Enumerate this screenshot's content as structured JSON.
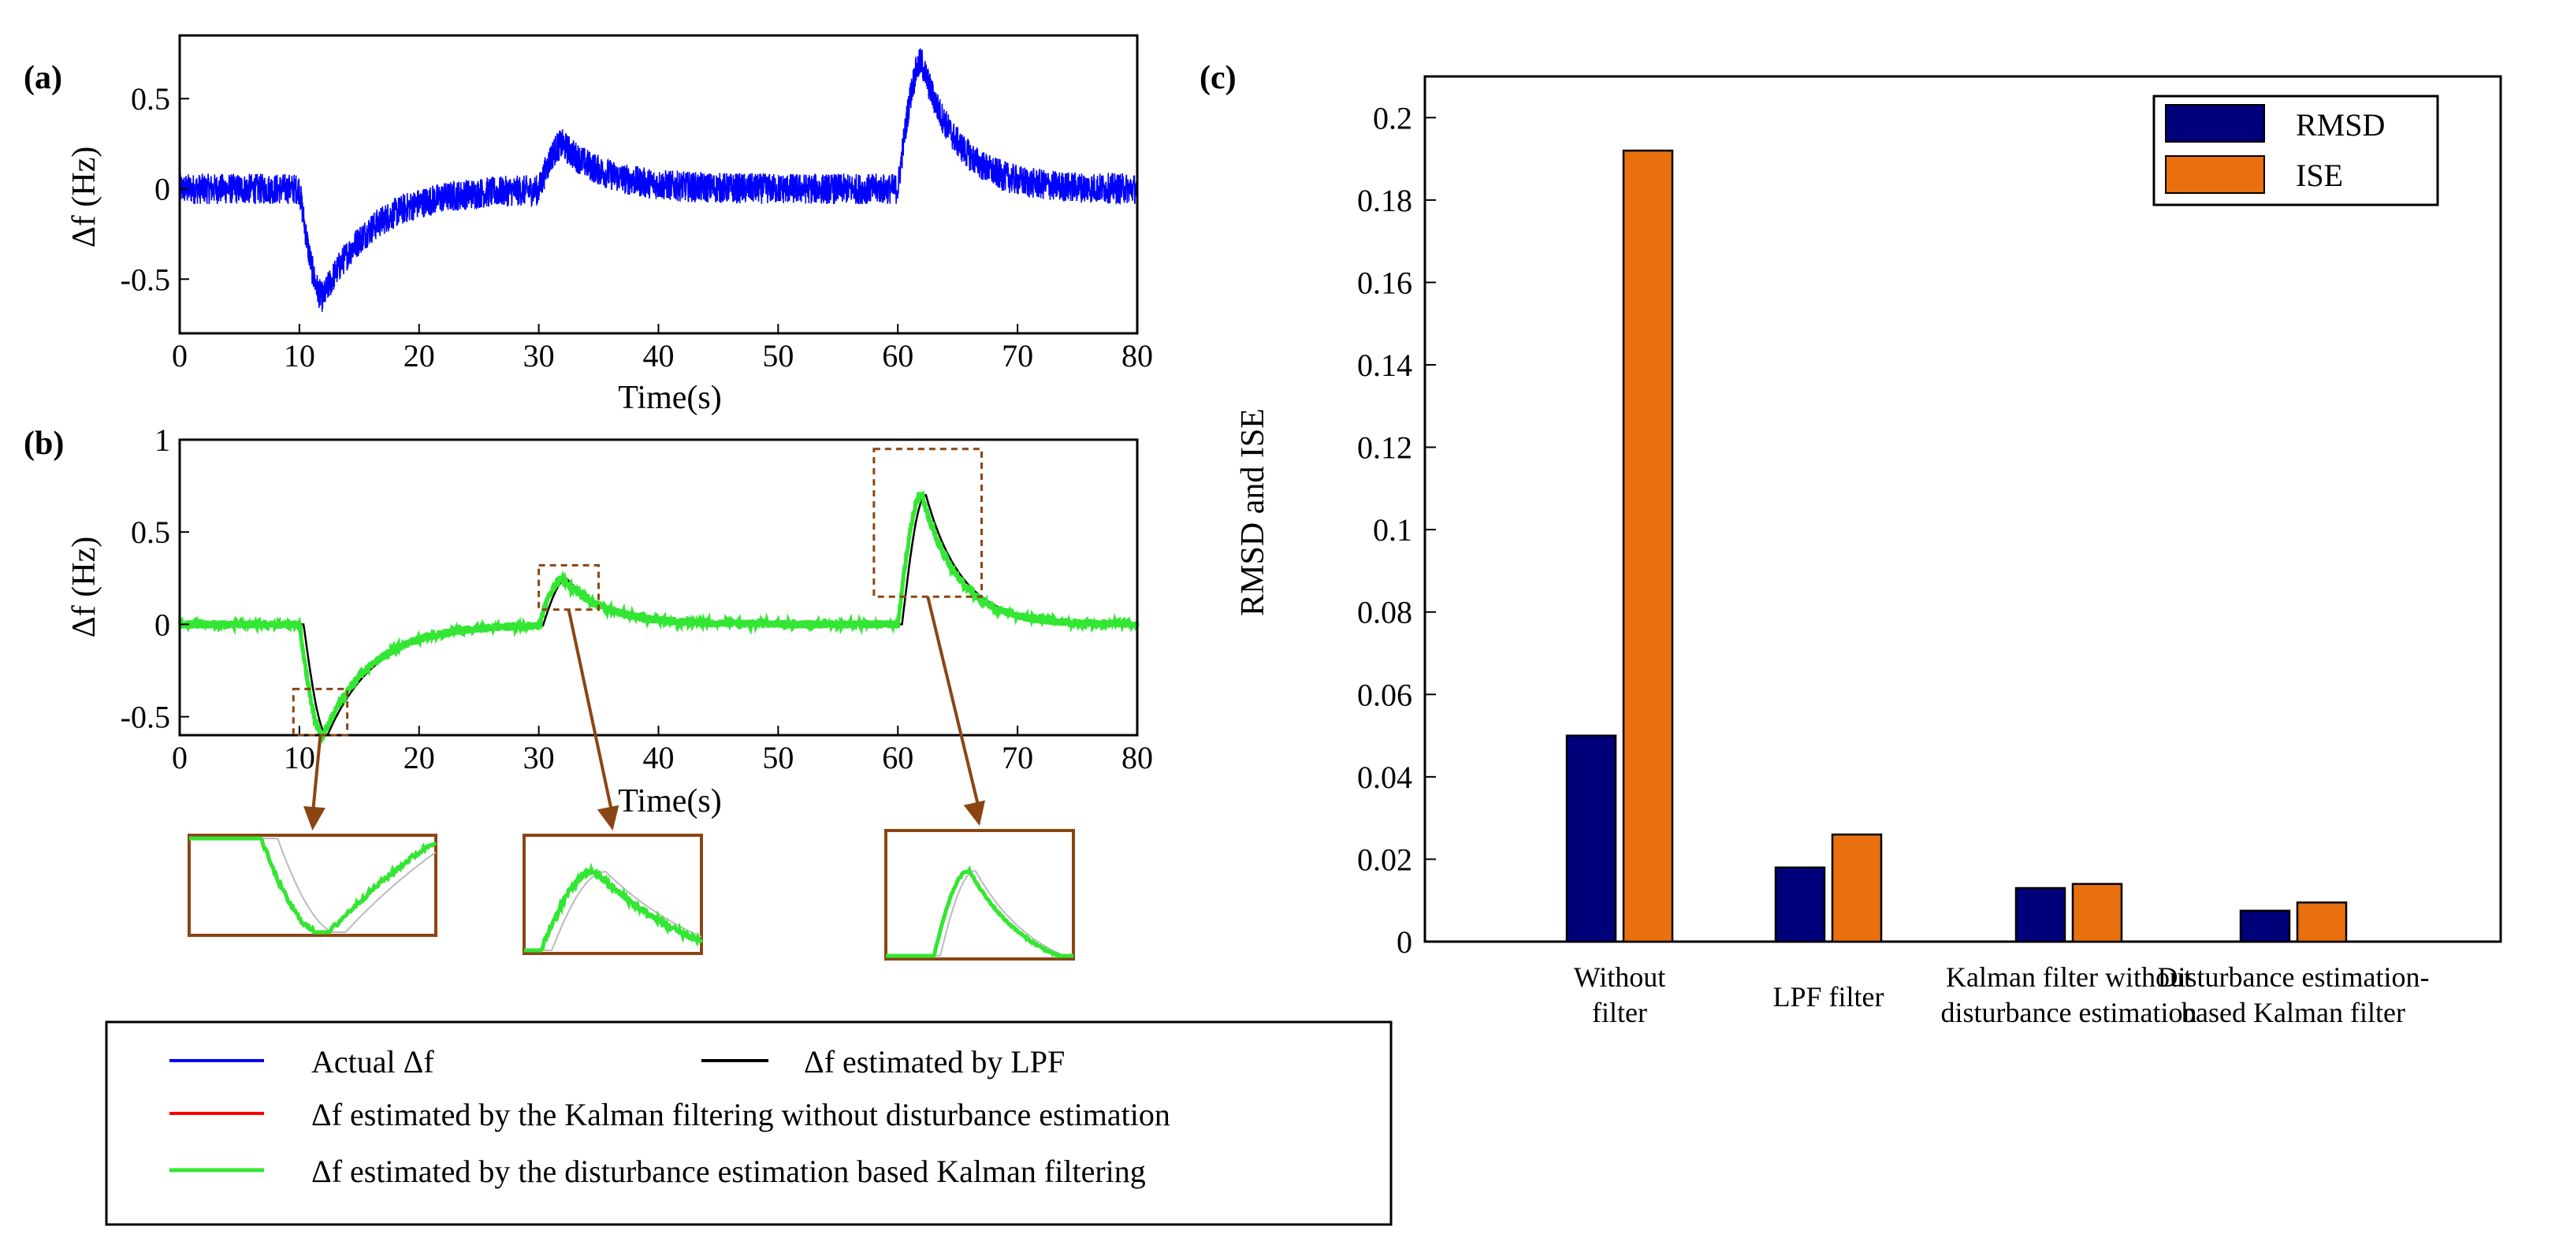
{
  "panels": {
    "a": {
      "label": "(a)",
      "ylabel": "Δf (Hz)",
      "xlabel": "Time(s)",
      "xlim": [
        0,
        80
      ],
      "ylim": [
        -0.8,
        0.85
      ],
      "xticks": [
        0,
        10,
        20,
        30,
        40,
        50,
        60,
        70,
        80
      ],
      "yticks": [
        -0.5,
        0,
        0.5
      ],
      "ytick_labels": [
        "-0.5",
        "0",
        "0.5"
      ],
      "noise_band": 0.085
    },
    "b": {
      "label": "(b)",
      "ylabel": "Δf (Hz)",
      "xlabel": "Time(s)",
      "xlim": [
        0,
        80
      ],
      "ylim": [
        -0.6,
        1.0
      ],
      "xticks": [
        0,
        10,
        20,
        30,
        40,
        50,
        60,
        70,
        80
      ],
      "yticks": [
        -0.5,
        0,
        0.5,
        1
      ],
      "ytick_labels": [
        "-0.5",
        "0",
        "0.5",
        "1"
      ]
    },
    "c": {
      "label": "(c)",
      "ylabel": "RMSD and ISE"
    }
  },
  "signal_events": [
    {
      "t0": 10,
      "amp": -0.6,
      "rise": 2,
      "decay": 4
    },
    {
      "t0": 30,
      "amp": 0.25,
      "rise": 2,
      "decay": 3.5
    },
    {
      "t0": 60,
      "amp": 0.7,
      "rise": 2,
      "decay": 3
    }
  ],
  "zoom_windows": [
    {
      "t": [
        9.5,
        14
      ],
      "f": [
        -0.6,
        -0.35
      ]
    },
    {
      "t": [
        30,
        35
      ],
      "f": [
        0.08,
        0.32
      ]
    },
    {
      "t": [
        58,
        67
      ],
      "f": [
        0.15,
        0.95
      ]
    }
  ],
  "legend": {
    "actual": "Actual Δf",
    "lpf": "Δf estimated by LPF",
    "kalman": "Δf  estimated by the  Kalman filtering without disturbance estimation",
    "dekf": "Δf  estimated by the disturbance estimation based Kalman filtering"
  },
  "colors": {
    "actual": "#0000ff",
    "lpf": "#000000",
    "kalman": "#ff0000",
    "dekf": "#33e633",
    "zoom_frame": "#8b4513",
    "rmsd": "#00007a",
    "ise": "#e8700e"
  },
  "chart_data": [
    {
      "type": "line",
      "title": "",
      "xlabel": "Time(s)",
      "ylabel": "Δf (Hz)",
      "xlim": [
        0,
        80
      ],
      "ylim": [
        -0.8,
        0.85
      ],
      "series": [
        {
          "name": "Actual Δf",
          "x": [
            0,
            10,
            12,
            20,
            30,
            32,
            40,
            60,
            62,
            70,
            80
          ],
          "y": [
            0,
            0,
            -0.6,
            -0.05,
            0,
            0.25,
            0,
            0,
            0.7,
            0.01,
            0
          ]
        }
      ]
    },
    {
      "type": "line",
      "title": "",
      "xlabel": "Time(s)",
      "ylabel": "Δf (Hz)",
      "xlim": [
        0,
        80
      ],
      "ylim": [
        -0.6,
        1.0
      ],
      "series": [
        {
          "name": "Δf estimated by LPF",
          "x": [
            0,
            10,
            12,
            20,
            30,
            32,
            40,
            60,
            62,
            70,
            80
          ],
          "y": [
            0,
            0,
            -0.58,
            -0.05,
            0,
            0.24,
            0,
            0,
            0.68,
            0.01,
            0
          ]
        },
        {
          "name": "Δf  estimated by the disturbance estimation based Kalman filtering",
          "x": [
            0,
            10,
            12,
            20,
            30,
            32,
            40,
            60,
            62,
            70,
            80
          ],
          "y": [
            0,
            0,
            -0.6,
            -0.05,
            0,
            0.25,
            0,
            0,
            0.7,
            0.01,
            0
          ]
        }
      ]
    },
    {
      "type": "bar",
      "title": "",
      "xlabel": "",
      "ylabel": "RMSD and ISE",
      "ylim": [
        0,
        0.21
      ],
      "yticks": [
        0,
        0.02,
        0.04,
        0.06,
        0.08,
        0.1,
        0.12,
        0.14,
        0.16,
        0.18,
        0.2
      ],
      "ytick_labels": [
        "0",
        "0.02",
        "0.04",
        "0.06",
        "0.08",
        "0.1",
        "0.12",
        "0.14",
        "0.16",
        "0.18",
        "0.2"
      ],
      "categories": [
        [
          "Without",
          "filter"
        ],
        [
          "LPF filter"
        ],
        [
          "Kalman filter without",
          "disturbance estimation"
        ],
        [
          "Disturbance estimation-",
          "based Kalman filter"
        ]
      ],
      "series": [
        {
          "name": "RMSD",
          "values": [
            0.05,
            0.018,
            0.013,
            0.0075
          ]
        },
        {
          "name": "ISE",
          "values": [
            0.192,
            0.026,
            0.014,
            0.0095
          ]
        }
      ],
      "legend_position": "top-right"
    }
  ]
}
